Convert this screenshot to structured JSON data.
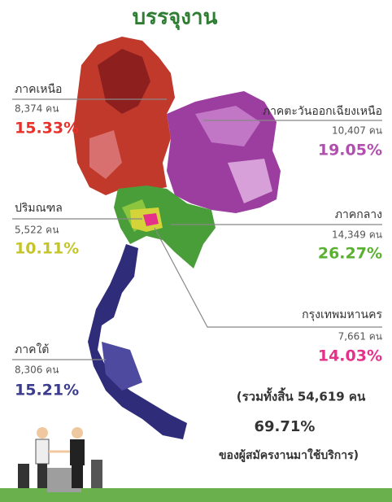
{
  "title": "บรรจุงาน",
  "regions": [
    {
      "name": "ภาคเหนือ",
      "count": "8,374 คน",
      "percent": "15.33%"
    },
    {
      "name": "ภาคตะวันออกเฉียงเหนือ",
      "count": "10,407 คน",
      "percent": "19.05%"
    },
    {
      "name": "ปริมณฑล",
      "count": "5,522 คน",
      "percent": "10.11%"
    },
    {
      "name": "ภาคกลาง",
      "count": "14,349 คน",
      "percent": "26.27%"
    },
    {
      "name": "กรุงเทพมหานคร",
      "count": "7,661 คน",
      "percent": "14.03%"
    },
    {
      "name": "ภาคใต้",
      "count": "8,306 คน",
      "percent": "15.21%"
    }
  ],
  "total": {
    "text": "(รวมทั้งสิ้น 54,619 คน",
    "percent": "69.71%",
    "caption": "ของผู้สมัครงานมาใช้บริการ)"
  }
}
